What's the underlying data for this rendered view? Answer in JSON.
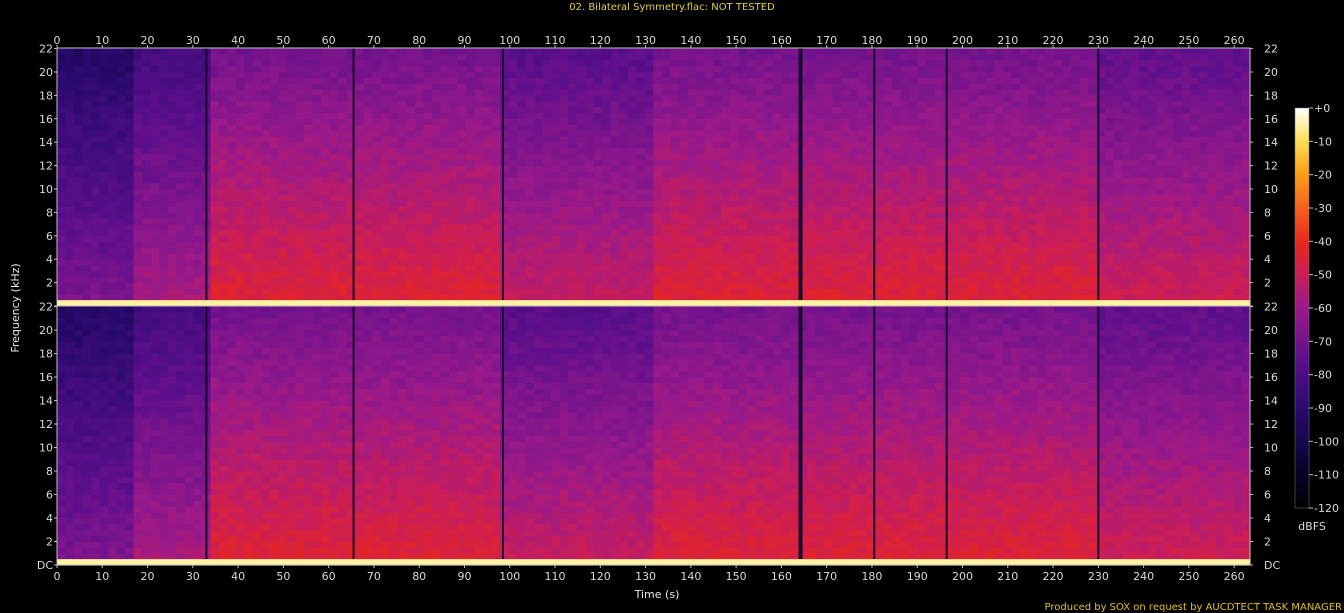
{
  "chart_data": {
    "type": "heatmap",
    "title": "02. Bilateral Symmetry.flac: NOT TESTED",
    "xlabel": "Time (s)",
    "ylabel": "Frequency (kHz)",
    "x_ticks": [
      0,
      10,
      20,
      30,
      40,
      50,
      60,
      70,
      80,
      90,
      100,
      110,
      120,
      130,
      140,
      150,
      160,
      170,
      180,
      190,
      200,
      210,
      220,
      230,
      240,
      250,
      260
    ],
    "xlim": [
      0,
      263.5
    ],
    "y_ticks": [
      "DC",
      "2",
      "4",
      "6",
      "8",
      "10",
      "12",
      "14",
      "16",
      "18",
      "20",
      "22"
    ],
    "ylim": [
      0,
      22.05
    ],
    "channels": [
      "top",
      "bottom"
    ],
    "colorbar": {
      "label": "dBFS",
      "ticks": [
        "+0",
        "-10",
        "-20",
        "-30",
        "-40",
        "-50",
        "-60",
        "-70",
        "-80",
        "-90",
        "-100",
        "-110",
        "-120"
      ],
      "range": [
        -120,
        0
      ]
    },
    "footer": "Produced by SOX on request by AUCDTECT TASK MANAGER",
    "segments": [
      {
        "t": [
          0,
          17
        ],
        "level": -78
      },
      {
        "t": [
          17,
          33
        ],
        "level": -68
      },
      {
        "t": [
          33,
          98.5
        ],
        "level": -55
      },
      {
        "t": [
          98.5,
          131
        ],
        "level": -62
      },
      {
        "t": [
          131,
          230
        ],
        "level": -55
      },
      {
        "t": [
          230,
          263.5
        ],
        "level": -60
      }
    ],
    "quiet_times": [
      33,
      65.5,
      98.5,
      164,
      180.5,
      196.5,
      230
    ],
    "colors": {
      "bg": "#000000",
      "grid_tick": "#c0c0c0",
      "title": "#e0d040",
      "footer": "#e0c020"
    }
  }
}
